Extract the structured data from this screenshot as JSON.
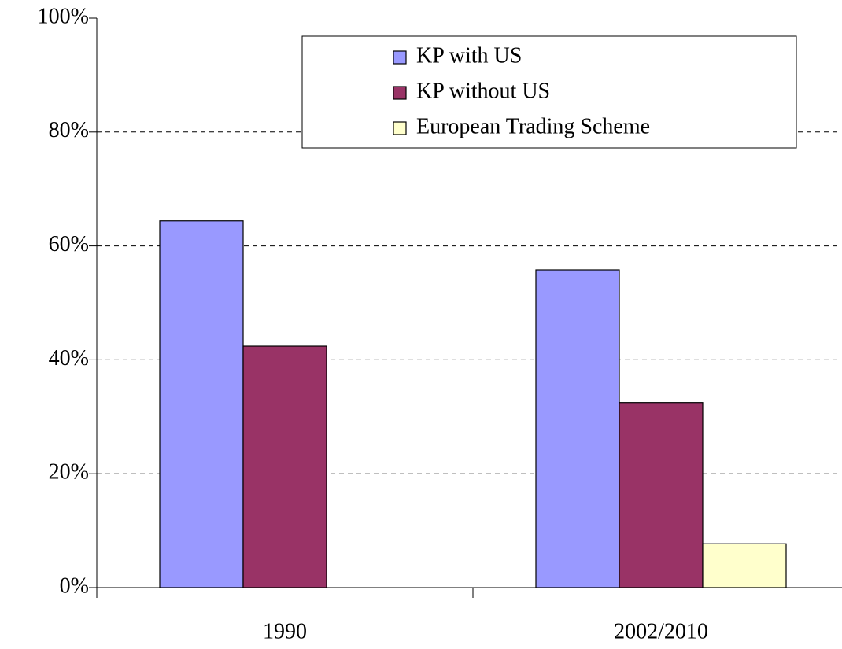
{
  "chart_data": {
    "type": "bar",
    "categories": [
      "1990",
      "2002/2010"
    ],
    "series": [
      {
        "name": "KP with US",
        "color": "#9999ff",
        "values": [
          64.4,
          55.8
        ]
      },
      {
        "name": "KP without US",
        "color": "#993366",
        "values": [
          42.4,
          32.5
        ]
      },
      {
        "name": "European Trading Scheme",
        "color": "#ffffcc",
        "values": [
          null,
          7.7
        ]
      }
    ],
    "ylim": [
      0,
      100
    ],
    "yticks": [
      {
        "value": 0,
        "label": "0%"
      },
      {
        "value": 20,
        "label": "20%"
      },
      {
        "value": 40,
        "label": "40%"
      },
      {
        "value": 60,
        "label": "60%"
      },
      {
        "value": 80,
        "label": "80%"
      },
      {
        "value": 100,
        "label": "100%"
      }
    ],
    "grid": true,
    "legend": "top-right"
  }
}
